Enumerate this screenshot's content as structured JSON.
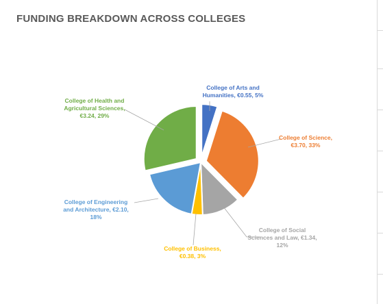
{
  "chart_data": {
    "type": "pie",
    "title": "FUNDING BREAKDOWN ACROSS COLLEGES",
    "slices": [
      {
        "label_lines": [
          "College of Arts and",
          "Humanities, €0.55, 5%"
        ],
        "name": "College of Arts and Humanities",
        "value": 0.55,
        "percent": 5,
        "color": "#4472c4",
        "explode": true,
        "label_color": "#4472c4"
      },
      {
        "label_lines": [
          "College of Science,",
          "€3.70, 33%"
        ],
        "name": "College of Science",
        "value": 3.7,
        "percent": 33,
        "color": "#ed7d31",
        "explode": true,
        "label_color": "#ed7d31"
      },
      {
        "label_lines": [
          "College of Social",
          "Sciences and Law, €1.34,",
          "12%"
        ],
        "name": "College of Social Sciences and Law",
        "value": 1.34,
        "percent": 12,
        "color": "#a5a5a5",
        "explode": false,
        "label_color": "#a5a5a5"
      },
      {
        "label_lines": [
          "College of Business,",
          "€0.38, 3%"
        ],
        "name": "College of Business",
        "value": 0.38,
        "percent": 3,
        "color": "#ffc000",
        "explode": false,
        "label_color": "#ffc000"
      },
      {
        "label_lines": [
          "College of Engineering",
          "and Architecture, €2.10,",
          "18%"
        ],
        "name": "College of Engineering and Architecture",
        "value": 2.1,
        "percent": 18,
        "color": "#5b9bd5",
        "explode": false,
        "label_color": "#5b9bd5"
      },
      {
        "label_lines": [
          "College of Health and",
          "Agricultural Sciences,",
          "€3.24, 29%"
        ],
        "name": "College of Health and Agricultural Sciences",
        "value": 3.24,
        "percent": 29,
        "color": "#70ad47",
        "explode": true,
        "label_color": "#70ad47"
      }
    ],
    "legend": "none"
  }
}
